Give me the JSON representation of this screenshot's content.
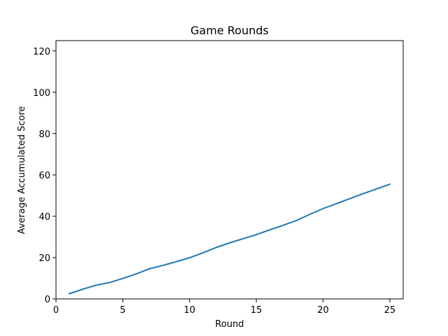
{
  "chart_data": {
    "type": "line",
    "title": "Game Rounds",
    "xlabel": "Round",
    "ylabel": "Average Accumulated Score",
    "xlim": [
      0,
      26
    ],
    "ylim": [
      0,
      125
    ],
    "xticks": [
      0,
      5,
      10,
      15,
      20,
      25
    ],
    "yticks": [
      0,
      20,
      40,
      60,
      80,
      100,
      120
    ],
    "grid": false,
    "series": [
      {
        "name": "",
        "color": "#1f77b4",
        "x": [
          1,
          2,
          3,
          4,
          5,
          6,
          7,
          8,
          9,
          10,
          11,
          12,
          13,
          14,
          15,
          16,
          17,
          18,
          19,
          20,
          21,
          22,
          23,
          24,
          25
        ],
        "y": [
          2.5,
          4.7,
          6.6,
          7.9,
          9.9,
          12.1,
          14.6,
          16.2,
          18.0,
          19.9,
          22.3,
          24.9,
          27.1,
          29.1,
          31.1,
          33.4,
          35.6,
          37.9,
          40.9,
          43.7,
          46.1,
          48.5,
          50.9,
          53.2,
          55.5
        ]
      }
    ]
  }
}
